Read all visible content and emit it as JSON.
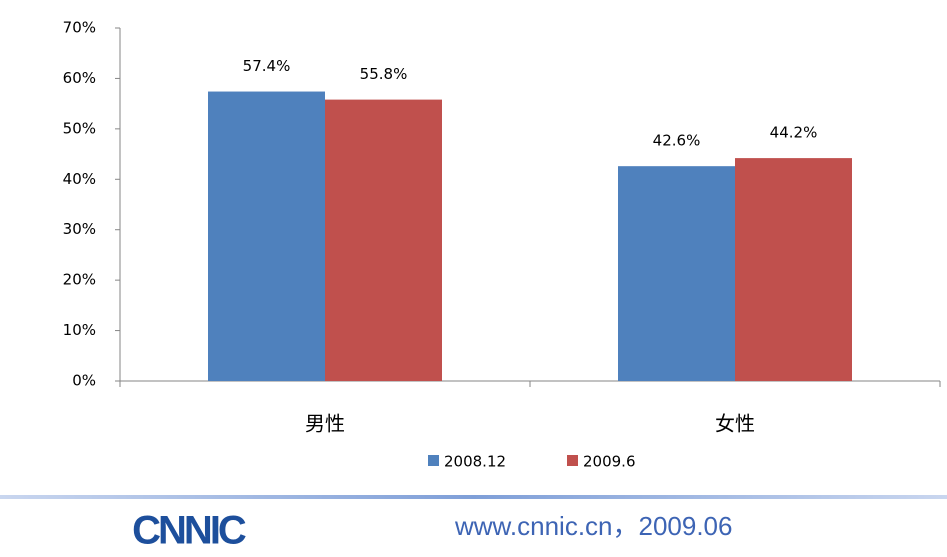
{
  "chart_data": {
    "type": "bar",
    "categories": [
      "男性",
      "女性"
    ],
    "series": [
      {
        "name": "2008.12",
        "color": "#4f81bd",
        "values": [
          57.4,
          42.6
        ],
        "value_labels": [
          "57.4%",
          "42.6%"
        ]
      },
      {
        "name": "2009.6",
        "color": "#c0504d",
        "values": [
          55.8,
          44.2
        ],
        "value_labels": [
          "55.8%",
          "44.2%"
        ]
      }
    ],
    "ylim": [
      0,
      70
    ],
    "yticks": [
      {
        "value": 0,
        "label": "0%"
      },
      {
        "value": 10,
        "label": "10%"
      },
      {
        "value": 20,
        "label": "20%"
      },
      {
        "value": 30,
        "label": "30%"
      },
      {
        "value": 40,
        "label": "40%"
      },
      {
        "value": 50,
        "label": "50%"
      },
      {
        "value": 60,
        "label": "60%"
      },
      {
        "value": 70,
        "label": "70%"
      }
    ],
    "legend": "bottom"
  },
  "footer": {
    "logo": "CNNIC",
    "text": "www.cnnic.cn，2009.06"
  }
}
